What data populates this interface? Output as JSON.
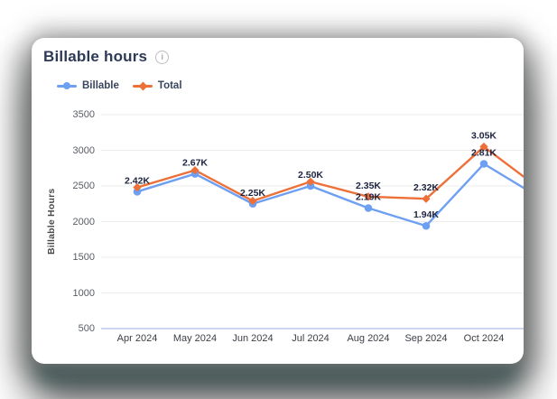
{
  "card": {
    "title": "Billable hours",
    "info_glyph": "i"
  },
  "legend": [
    {
      "label": "Billable",
      "color": "#6d9ff2",
      "marker": "circle"
    },
    {
      "label": "Total",
      "color": "#ed7038",
      "marker": "diamond"
    }
  ],
  "chart_data": {
    "type": "line",
    "categories": [
      "Apr 2024",
      "May 2024",
      "Jun 2024",
      "Jul 2024",
      "Aug 2024",
      "Sep 2024",
      "Oct 2024"
    ],
    "series": [
      {
        "name": "Billable",
        "color": "#6d9ff2",
        "marker": "circle",
        "values": [
          2420,
          2670,
          2250,
          2500,
          2190,
          1940,
          2810
        ],
        "labels": [
          "2.42K",
          "2.67K",
          "2.25K",
          "2.50K",
          "2.19K",
          "1.94K",
          "2.81K"
        ]
      },
      {
        "name": "Total",
        "color": "#ed7038",
        "marker": "diamond",
        "values": [
          2480,
          2720,
          2290,
          2560,
          2350,
          2320,
          3050
        ],
        "labels": [
          null,
          null,
          null,
          null,
          "2.35K",
          "2.32K",
          "3.05K"
        ]
      }
    ],
    "clipped_next_values": {
      "Billable": 2320,
      "Total": 2440
    },
    "title": "Billable hours",
    "xlabel": "",
    "ylabel": "Billable Hours",
    "ylim": [
      500,
      3500
    ],
    "yticks": [
      500,
      1000,
      1500,
      2000,
      2500,
      3000,
      3500
    ],
    "grid": true,
    "legend_position": "top-left"
  },
  "colors": {
    "billable_line": "#6d9ff2",
    "total_line": "#ed7038",
    "axis_line": "#bcc8ef",
    "gridline": "#ececec",
    "card_title": "#2d3a56",
    "data_label": "#1c2440",
    "shadow_teal": "#20504e"
  }
}
